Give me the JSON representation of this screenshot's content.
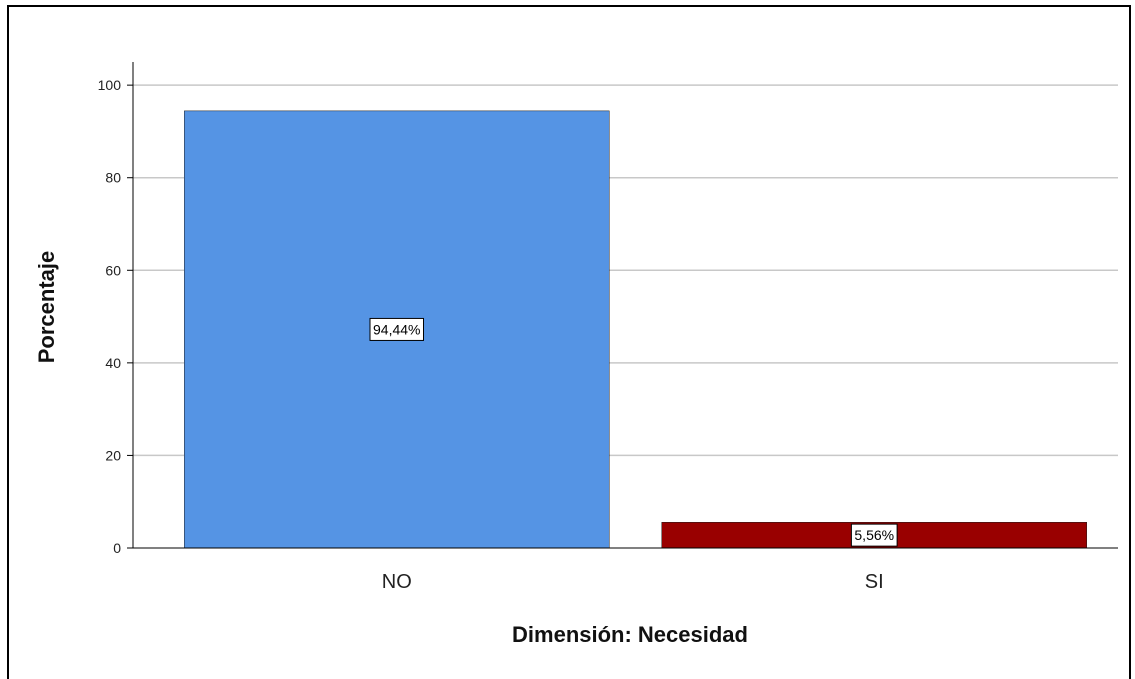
{
  "chart_data": {
    "type": "bar",
    "categories": [
      "NO",
      "SI"
    ],
    "values": [
      94.44,
      5.56
    ],
    "data_labels": [
      "94,44%",
      "5,56%"
    ],
    "colors": [
      "#5594E4",
      "#990000"
    ],
    "xlabel": "Dimensión: Necesidad",
    "ylabel": "Porcentaje",
    "ylim": [
      0,
      105
    ],
    "yticks": [
      0,
      20,
      40,
      60,
      80,
      100
    ],
    "grid": true,
    "legend": "none"
  }
}
